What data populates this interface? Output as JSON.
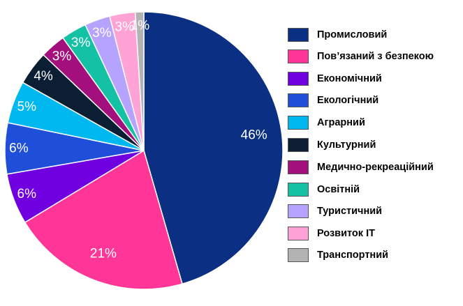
{
  "chart_data": {
    "type": "pie",
    "title": "",
    "legend_placement": "right",
    "slices": [
      {
        "label": "Промисловий",
        "value": 46,
        "display": "46%",
        "color": "#0b2f82"
      },
      {
        "label": "Пов’язаний з безпекою",
        "value": 21,
        "display": "21%",
        "color": "#ff3598"
      },
      {
        "label": "Економічний",
        "value": 6,
        "display": "6%",
        "color": "#7000e0"
      },
      {
        "label": "Екологічний",
        "value": 6,
        "display": "6%",
        "color": "#1f4fd9"
      },
      {
        "label": "Аграрний",
        "value": 5,
        "display": "5%",
        "color": "#00b8f0"
      },
      {
        "label": "Культурний",
        "value": 4,
        "display": "4%",
        "color": "#0b1e33"
      },
      {
        "label": "Медично-рекреаційний",
        "value": 3,
        "display": "3%",
        "color": "#a30f7d"
      },
      {
        "label": "Освітній",
        "value": 3,
        "display": "3%",
        "color": "#14c1a4"
      },
      {
        "label": "Туристичний",
        "value": 3,
        "display": "3%",
        "color": "#b6a2ff"
      },
      {
        "label": "Розвиток ІТ",
        "value": 3,
        "display": "3%",
        "color": "#ffa3d6"
      },
      {
        "label": "Транспортний",
        "value": 1,
        "display": "1%",
        "color": "#b3b3b3"
      }
    ]
  }
}
